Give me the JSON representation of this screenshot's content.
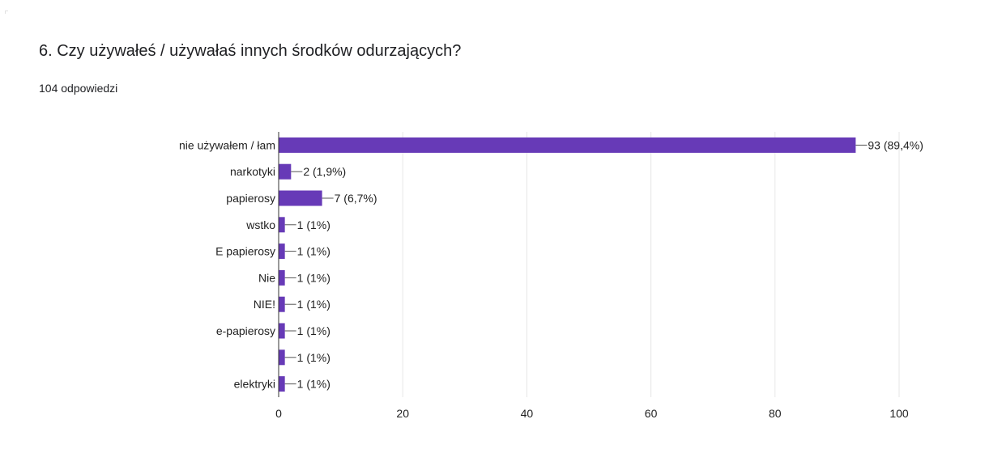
{
  "question": {
    "title": "6. Czy używałeś / używałaś innych środków odurzających?",
    "responses": "104 odpowiedzi"
  },
  "colors": {
    "bar": "#673ab7",
    "grid": "#e6e6e6",
    "axis": "#333333",
    "text": "#222222"
  },
  "chart_data": {
    "type": "bar",
    "orientation": "horizontal",
    "title": "",
    "xlabel": "",
    "ylabel": "",
    "categories": [
      "nie używałem / łam",
      "narkotyki",
      "papierosy",
      "wstko",
      "E papierosy",
      "Nie",
      "NIE!",
      "e-papierosy",
      "",
      "elektryki"
    ],
    "values": [
      93,
      2,
      7,
      1,
      1,
      1,
      1,
      1,
      1,
      1
    ],
    "value_labels": [
      "93 (89,4%)",
      "2 (1,9%)",
      "7 (6,7%)",
      "1 (1%)",
      "1 (1%)",
      "1 (1%)",
      "1 (1%)",
      "1 (1%)",
      "1 (1%)",
      "1 (1%)"
    ],
    "xlim": [
      0,
      100
    ],
    "xticks": [
      0,
      20,
      40,
      60,
      80,
      100
    ],
    "xtick_labels": [
      "0",
      "20",
      "40",
      "60",
      "80",
      "100"
    ],
    "grid": true,
    "legend": "none"
  }
}
